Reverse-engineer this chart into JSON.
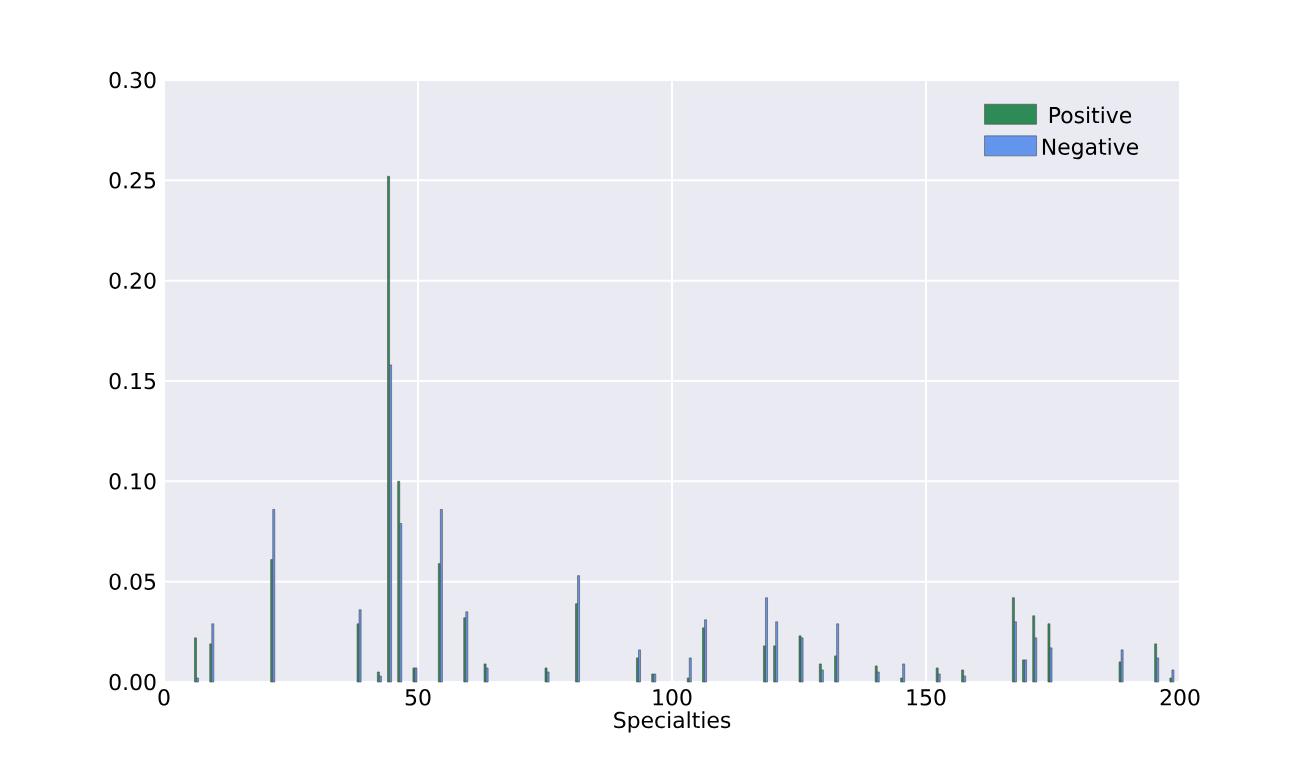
{
  "chart_data": {
    "type": "bar",
    "xlabel": "Specialties",
    "x": [
      6,
      9,
      21,
      38,
      42,
      44,
      46,
      49,
      54,
      59,
      63,
      75,
      81,
      93,
      96,
      103,
      106,
      118,
      120,
      125,
      129,
      132,
      140,
      145,
      152,
      157,
      167,
      169,
      171,
      174,
      188,
      195,
      198
    ],
    "series": [
      {
        "name": "Positive",
        "color": "#2e8b57",
        "values": [
          0.022,
          0.019,
          0.061,
          0.029,
          0.005,
          0.252,
          0.1,
          0.007,
          0.059,
          0.032,
          0.009,
          0.007,
          0.039,
          0.012,
          0.004,
          0.002,
          0.027,
          0.018,
          0.018,
          0.023,
          0.009,
          0.013,
          0.008,
          0.002,
          0.007,
          0.006,
          0.042,
          0.011,
          0.033,
          0.029,
          0.01,
          0.019,
          0.002
        ]
      },
      {
        "name": "Negative",
        "color": "#6495ed",
        "values": [
          0.002,
          0.029,
          0.086,
          0.036,
          0.003,
          0.158,
          0.079,
          0.007,
          0.086,
          0.035,
          0.007,
          0.005,
          0.053,
          0.016,
          0.004,
          0.012,
          0.031,
          0.042,
          0.03,
          0.022,
          0.006,
          0.029,
          0.005,
          0.009,
          0.004,
          0.003,
          0.03,
          0.011,
          0.022,
          0.017,
          0.016,
          0.012,
          0.006
        ]
      }
    ],
    "xlim": [
      0,
      200
    ],
    "xticks": [
      0,
      50,
      100,
      150,
      200
    ],
    "ylim": [
      0,
      0.3
    ],
    "yticks": [
      {
        "value": 0,
        "label": "0.00"
      },
      {
        "value": 0.05,
        "label": "0.05"
      },
      {
        "value": 0.1,
        "label": "0.10"
      },
      {
        "value": 0.15,
        "label": "0.15"
      },
      {
        "value": 0.2,
        "label": "0.20"
      },
      {
        "value": 0.25,
        "label": "0.25"
      },
      {
        "value": 0.3,
        "label": "0.30"
      }
    ],
    "grid": true,
    "legend": "top right"
  }
}
